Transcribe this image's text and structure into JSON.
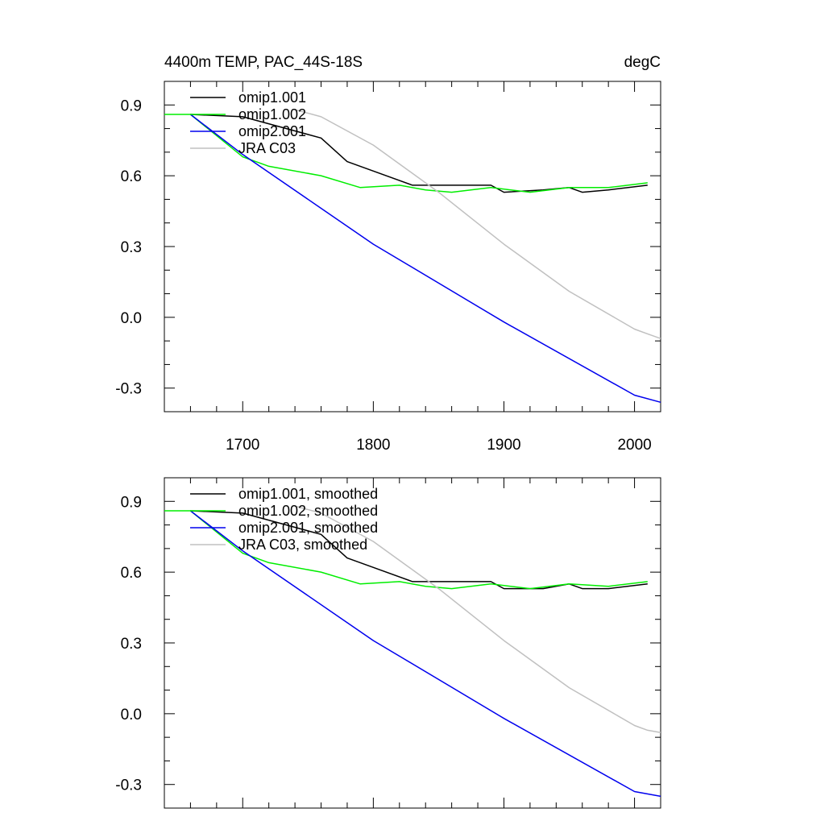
{
  "colors": {
    "omip1_001": "#000000",
    "omip1_002": "#00ee00",
    "omip2_001": "#0000ee",
    "jra_c03": "#c0c0c0"
  },
  "chart_data": [
    {
      "type": "line",
      "title": "4400m TEMP, PAC_44S-18S",
      "units": "degC",
      "xlim": [
        1640,
        2020
      ],
      "ylim": [
        -0.4,
        1.0
      ],
      "x_ticks": [
        "1700",
        "1800",
        "1900",
        "2000"
      ],
      "y_ticks": [
        "0.9",
        "0.6",
        "0.3",
        "0.0",
        "-0.3"
      ],
      "legend": "top-left",
      "series": [
        {
          "name": "omip1.001",
          "color": "#000000",
          "x": [
            1660,
            1700,
            1760,
            1780,
            1800,
            1830,
            1860,
            1890,
            1900,
            1930,
            1950,
            1960,
            1980,
            2010
          ],
          "y": [
            0.86,
            0.85,
            0.76,
            0.66,
            0.62,
            0.56,
            0.56,
            0.56,
            0.53,
            0.54,
            0.55,
            0.53,
            0.54,
            0.56
          ]
        },
        {
          "name": "omip1.002",
          "color": "#00ee00",
          "x": [
            1640,
            1660,
            1700,
            1720,
            1760,
            1790,
            1820,
            1840,
            1860,
            1890,
            1920,
            1950,
            1980,
            2010
          ],
          "y": [
            0.86,
            0.86,
            0.68,
            0.64,
            0.6,
            0.55,
            0.56,
            0.54,
            0.53,
            0.55,
            0.53,
            0.55,
            0.55,
            0.57
          ]
        },
        {
          "name": "omip2.001",
          "color": "#0000ee",
          "x": [
            1660,
            1700,
            1800,
            1900,
            2000,
            2020
          ],
          "y": [
            0.86,
            0.69,
            0.31,
            -0.02,
            -0.33,
            -0.36
          ]
        },
        {
          "name": "JRA C03",
          "color": "#c0c0c0",
          "x": [
            1740,
            1760,
            1800,
            1850,
            1900,
            1950,
            2000,
            2010,
            2020
          ],
          "y": [
            0.88,
            0.85,
            0.73,
            0.53,
            0.31,
            0.11,
            -0.05,
            -0.07,
            -0.09
          ]
        }
      ]
    },
    {
      "type": "line",
      "title": "",
      "units": "",
      "xlim": [
        1640,
        2020
      ],
      "ylim": [
        -0.4,
        1.0
      ],
      "x_ticks": [],
      "y_ticks": [
        "0.9",
        "0.6",
        "0.3",
        "0.0",
        "-0.3"
      ],
      "legend": "top-left",
      "series": [
        {
          "name": "omip1.001, smoothed",
          "color": "#000000",
          "x": [
            1660,
            1700,
            1760,
            1780,
            1800,
            1830,
            1860,
            1890,
            1900,
            1930,
            1950,
            1960,
            1980,
            2010
          ],
          "y": [
            0.86,
            0.85,
            0.76,
            0.66,
            0.62,
            0.56,
            0.56,
            0.56,
            0.53,
            0.53,
            0.55,
            0.53,
            0.53,
            0.55
          ]
        },
        {
          "name": "omip1.002, smoothed",
          "color": "#00ee00",
          "x": [
            1640,
            1660,
            1700,
            1720,
            1760,
            1790,
            1820,
            1840,
            1860,
            1890,
            1920,
            1950,
            1980,
            2010
          ],
          "y": [
            0.86,
            0.86,
            0.68,
            0.64,
            0.6,
            0.55,
            0.56,
            0.54,
            0.53,
            0.55,
            0.53,
            0.55,
            0.54,
            0.56
          ]
        },
        {
          "name": "omip2.001, smoothed",
          "color": "#0000ee",
          "x": [
            1660,
            1700,
            1800,
            1900,
            2000,
            2020
          ],
          "y": [
            0.86,
            0.69,
            0.31,
            -0.02,
            -0.33,
            -0.35
          ]
        },
        {
          "name": "JRA C03, smoothed",
          "color": "#c0c0c0",
          "x": [
            1740,
            1760,
            1800,
            1850,
            1900,
            1950,
            2000,
            2010,
            2020
          ],
          "y": [
            0.88,
            0.85,
            0.73,
            0.53,
            0.31,
            0.11,
            -0.05,
            -0.07,
            -0.08
          ]
        }
      ]
    }
  ]
}
